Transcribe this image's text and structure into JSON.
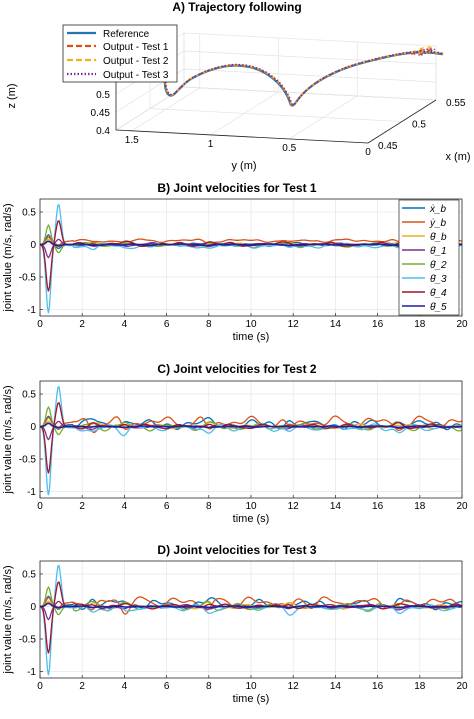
{
  "colors": {
    "reference": "#1f77b4",
    "test1": "#d95319",
    "test2": "#edb120",
    "test3": "#7e2f8e",
    "joint": [
      "#0072bd",
      "#d95319",
      "#edb120",
      "#7e2f8e",
      "#77ac30",
      "#4dbeee",
      "#a2142f",
      "#1f1f9f"
    ]
  },
  "chart_data": [
    {
      "type": "line",
      "title": "A) Trajectory following",
      "projection": "3d",
      "xlabel": "y (m)",
      "ylabel": "x (m)",
      "zlabel": "z (m)",
      "x_ticks": [
        "1.5",
        "1",
        "0.5",
        "0"
      ],
      "y_ticks": [
        "0.45",
        "0.5",
        "0.55"
      ],
      "z_ticks": [
        "0.4",
        "0.45",
        "0.5"
      ],
      "legend_position": "top-left",
      "grid": true,
      "series": [
        {
          "name": "Reference",
          "style": "solid"
        },
        {
          "name": "Output - Test 1",
          "style": "dashed"
        },
        {
          "name": "Output - Test 2",
          "style": "dashed"
        },
        {
          "name": "Output - Test 3",
          "style": "dotted"
        }
      ],
      "points": [
        {
          "y": 1.55,
          "x": 0.51,
          "z": 0.51
        },
        {
          "y": 1.55,
          "x": 0.51,
          "z": 0.44
        },
        {
          "y": 1.51,
          "x": 0.51,
          "z": 0.42
        },
        {
          "y": 1.45,
          "x": 0.51,
          "z": 0.45
        },
        {
          "y": 1.34,
          "x": 0.5,
          "z": 0.49
        },
        {
          "y": 1.2,
          "x": 0.5,
          "z": 0.52
        },
        {
          "y": 1.05,
          "x": 0.5,
          "z": 0.535
        },
        {
          "y": 0.9,
          "x": 0.5,
          "z": 0.525
        },
        {
          "y": 0.78,
          "x": 0.5,
          "z": 0.49
        },
        {
          "y": 0.72,
          "x": 0.5,
          "z": 0.45
        },
        {
          "y": 0.7,
          "x": 0.5,
          "z": 0.42
        },
        {
          "y": 0.66,
          "x": 0.505,
          "z": 0.455
        },
        {
          "y": 0.57,
          "x": 0.51,
          "z": 0.49
        },
        {
          "y": 0.45,
          "x": 0.52,
          "z": 0.515
        },
        {
          "y": 0.3,
          "x": 0.53,
          "z": 0.53
        },
        {
          "y": 0.15,
          "x": 0.545,
          "z": 0.535
        },
        {
          "y": 0.05,
          "x": 0.555,
          "z": 0.525
        },
        {
          "y": 0.0,
          "x": 0.56,
          "z": 0.515
        }
      ],
      "end_loop": [
        {
          "y": 0.1,
          "x": 0.535,
          "z": 0.545
        },
        {
          "y": 0.05,
          "x": 0.54,
          "z": 0.555
        },
        {
          "y": 0.0,
          "x": 0.545,
          "z": 0.55
        },
        {
          "y": 0.05,
          "x": 0.55,
          "z": 0.54
        },
        {
          "y": 0.1,
          "x": 0.545,
          "z": 0.53
        }
      ]
    },
    {
      "type": "line",
      "title": "B) Joint velocities for Test 1",
      "xlabel": "time (s)",
      "ylabel": "joint value (m/s, rad/s)",
      "xlim": [
        0,
        20
      ],
      "ylim": [
        -1.1,
        0.7
      ],
      "x_ticks": [
        0,
        2,
        4,
        6,
        8,
        10,
        12,
        14,
        16,
        18,
        20
      ],
      "y_ticks": [
        -1,
        -0.5,
        0,
        0.5
      ],
      "grid": true,
      "legend_position": "right",
      "series": [
        {
          "name": "ẋ_b",
          "peak": 0.15,
          "noise": 0.015,
          "offset": 0.0
        },
        {
          "name": "ẏ_b",
          "peak": 0.1,
          "noise": 0.015,
          "offset": 0.06
        },
        {
          "name": "θ̇_b",
          "peak": 0.08,
          "noise": 0.01,
          "offset": 0.0
        },
        {
          "name": "θ̇_1",
          "peak": -0.2,
          "noise": 0.01,
          "offset": 0.0
        },
        {
          "name": "θ̇_2",
          "peak": 0.3,
          "noise": 0.02,
          "offset": -0.01
        },
        {
          "name": "θ̇_3",
          "peak": -1.05,
          "peak2": 0.63,
          "noise": 0.02,
          "offset": -0.02
        },
        {
          "name": "θ̇_4",
          "peak": -0.72,
          "peak2": 0.37,
          "noise": 0.02,
          "offset": 0.0
        },
        {
          "name": "θ̇_5",
          "peak": 0.05,
          "noise": 0.005,
          "offset": 0.0
        }
      ]
    },
    {
      "type": "line",
      "title": "C) Joint velocities for Test 2",
      "xlabel": "time (s)",
      "ylabel": "joint value (m/s, rad/s)",
      "xlim": [
        0,
        20
      ],
      "ylim": [
        -1.1,
        0.7
      ],
      "x_ticks": [
        0,
        2,
        4,
        6,
        8,
        10,
        12,
        14,
        16,
        18,
        20
      ],
      "y_ticks": [
        -1,
        -0.5,
        0,
        0.5
      ],
      "grid": true,
      "series": [
        {
          "name": "ẋ_b",
          "peak": 0.15,
          "noise": 0.04,
          "offset": 0.03
        },
        {
          "name": "ẏ_b",
          "peak": 0.12,
          "noise": 0.05,
          "offset": 0.07
        },
        {
          "name": "θ̇_b",
          "peak": 0.08,
          "noise": 0.02,
          "offset": 0.0
        },
        {
          "name": "θ̇_1",
          "peak": -0.2,
          "noise": 0.015,
          "offset": 0.0
        },
        {
          "name": "θ̇_2",
          "peak": 0.3,
          "noise": 0.03,
          "offset": -0.01
        },
        {
          "name": "θ̇_3",
          "peak": -1.05,
          "peak2": 0.63,
          "noise": 0.03,
          "offset": -0.02
        },
        {
          "name": "θ̇_4",
          "peak": -0.72,
          "peak2": 0.37,
          "noise": 0.02,
          "offset": 0.0
        },
        {
          "name": "θ̇_5",
          "peak": 0.05,
          "noise": 0.005,
          "offset": 0.0
        }
      ]
    },
    {
      "type": "line",
      "title": "D) Joint velocities for Test 3",
      "xlabel": "time (s)",
      "ylabel": "joint value (m/s, rad/s)",
      "xlim": [
        0,
        20
      ],
      "ylim": [
        -1.1,
        0.7
      ],
      "x_ticks": [
        0,
        2,
        4,
        6,
        8,
        10,
        12,
        14,
        16,
        18,
        20
      ],
      "y_ticks": [
        -1,
        -0.5,
        0,
        0.5
      ],
      "grid": true,
      "series": [
        {
          "name": "ẋ_b",
          "peak": 0.15,
          "noise": 0.04,
          "offset": 0.03
        },
        {
          "name": "ẏ_b",
          "peak": 0.12,
          "noise": 0.05,
          "offset": 0.07
        },
        {
          "name": "θ̇_b",
          "peak": 0.08,
          "noise": 0.02,
          "offset": 0.0
        },
        {
          "name": "θ̇_1",
          "peak": -0.2,
          "noise": 0.015,
          "offset": 0.0
        },
        {
          "name": "θ̇_2",
          "peak": 0.3,
          "noise": 0.03,
          "offset": -0.01
        },
        {
          "name": "θ̇_3",
          "peak": -1.05,
          "peak2": 0.65,
          "noise": 0.03,
          "offset": -0.02
        },
        {
          "name": "θ̇_4",
          "peak": -0.72,
          "peak2": 0.38,
          "noise": 0.02,
          "offset": 0.0
        },
        {
          "name": "θ̇_5",
          "peak": 0.05,
          "noise": 0.005,
          "offset": 0.0
        }
      ]
    }
  ]
}
